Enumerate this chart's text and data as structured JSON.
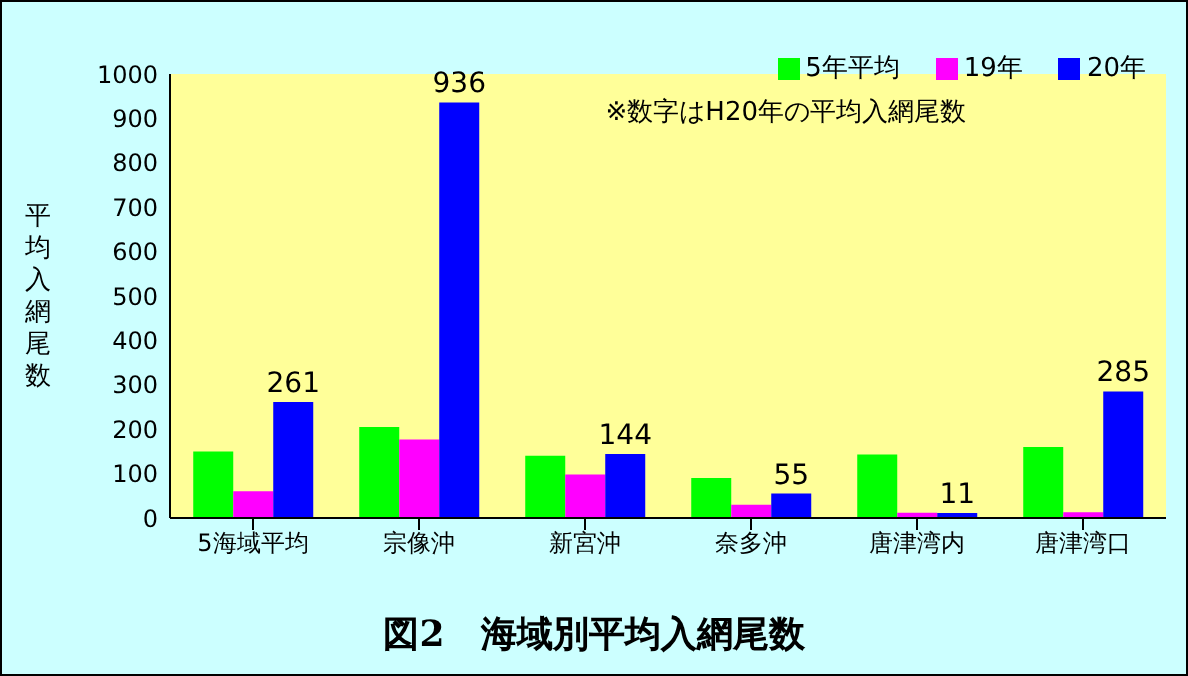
{
  "chart_data": {
    "type": "bar",
    "title": "図2　海域別平均入網尾数",
    "ylabel": "平均入網尾数",
    "annotations": [
      "※数字はH20年の平均入網尾数"
    ],
    "categories": [
      "5海域平均",
      "宗像沖",
      "新宮沖",
      "奈多沖",
      "唐津湾内",
      "唐津湾口"
    ],
    "series": [
      {
        "name": "5年平均",
        "color": "#00ff00",
        "values": [
          150,
          205,
          140,
          90,
          143,
          160
        ]
      },
      {
        "name": "19年",
        "color": "#ff00ff",
        "values": [
          60,
          177,
          98,
          30,
          12,
          13
        ]
      },
      {
        "name": "20年",
        "color": "#0000ff",
        "values": [
          261,
          936,
          144,
          55,
          11,
          285
        ],
        "value_labels": [
          "261",
          "936",
          "144",
          "55",
          "11",
          "285"
        ]
      }
    ],
    "ylim": [
      0,
      1000
    ],
    "yticks": [
      0,
      100,
      200,
      300,
      400,
      500,
      600,
      700,
      800,
      900,
      1000
    ],
    "legend": "top right"
  }
}
